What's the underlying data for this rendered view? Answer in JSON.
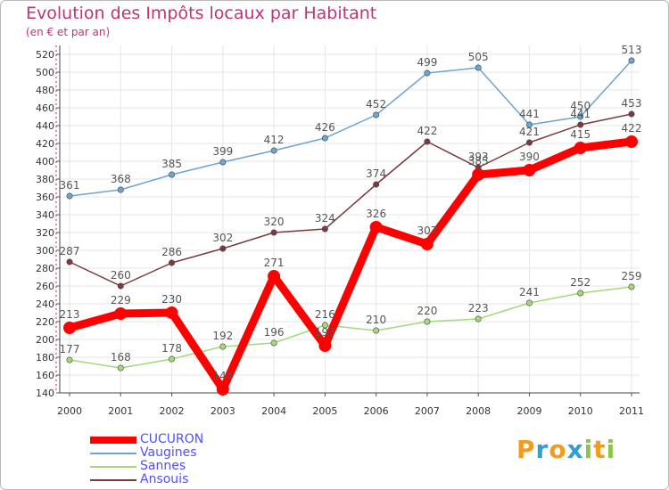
{
  "chart_data": {
    "type": "line",
    "title": "Evolution des Impôts locaux par Habitant",
    "subtitle": "(en € et par an)",
    "categories": [
      "2000",
      "2001",
      "2002",
      "2003",
      "2004",
      "2005",
      "2006",
      "2007",
      "2008",
      "2009",
      "2010",
      "2011"
    ],
    "ylim": [
      140,
      520
    ],
    "yticks": [
      140,
      160,
      180,
      200,
      220,
      240,
      260,
      280,
      300,
      320,
      340,
      360,
      380,
      400,
      420,
      440,
      460,
      480,
      500,
      520
    ],
    "grid": true,
    "legend_position": "bottom-left",
    "series": [
      {
        "name": "CUCURON",
        "color": "#ff0000",
        "values": [
          213,
          229,
          230,
          144,
          271,
          193,
          326,
          307,
          385,
          390,
          415,
          422
        ]
      },
      {
        "name": "Vaugines",
        "color": "#6da4d2",
        "values": [
          361,
          368,
          385,
          399,
          412,
          426,
          452,
          499,
          505,
          441,
          450,
          513
        ]
      },
      {
        "name": "Sannes",
        "color": "#a3d97a",
        "values": [
          177,
          168,
          178,
          192,
          196,
          216,
          210,
          220,
          223,
          241,
          252,
          259
        ]
      },
      {
        "name": "Ansouis",
        "color": "#7a3a3f",
        "values": [
          287,
          260,
          286,
          302,
          320,
          324,
          374,
          422,
          393,
          421,
          441,
          453
        ]
      }
    ]
  },
  "brand": {
    "letters": [
      "P",
      "r",
      "o",
      "x",
      "i",
      "t",
      "i"
    ],
    "colors": [
      "#f39c1a",
      "#2f9fd8",
      "#f39c1a",
      "#2f9fd8",
      "#8cc63e",
      "#f39c1a",
      "#8cc63e"
    ]
  }
}
